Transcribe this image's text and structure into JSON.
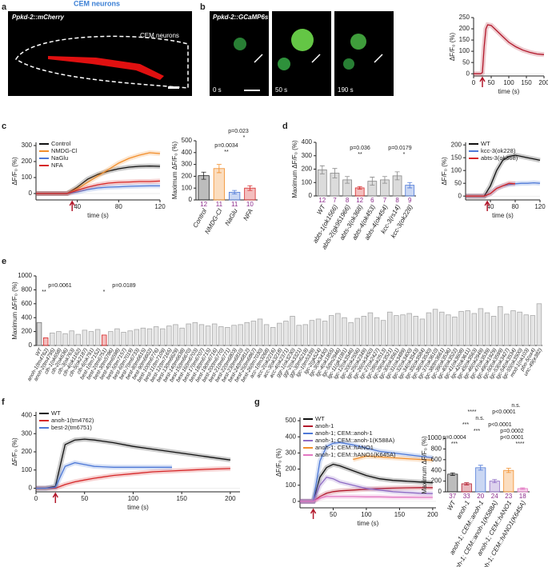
{
  "figure_header": "CEM neurons",
  "panel_letters": [
    "a",
    "b",
    "c",
    "d",
    "e",
    "f",
    "g"
  ],
  "panels": {
    "a": {
      "label": "Ppkd-2::mCherry",
      "annotation": "CEM neurons"
    },
    "b": {
      "label": "Ppkd-2::GCaMP6s",
      "frames": [
        "0 s",
        "50 s",
        "190 s"
      ]
    }
  },
  "chart_data": [
    {
      "type": "line",
      "xlabel": "time (s)",
      "ylabel": "ΔF/F₀ (%)",
      "x": [
        0,
        20,
        25,
        30,
        35,
        40,
        50,
        60,
        80,
        100,
        120,
        140,
        160,
        180,
        200
      ],
      "xlim": [
        0,
        200
      ],
      "xticks": [
        0,
        50,
        100,
        150,
        200
      ],
      "ylim": [
        -10,
        250
      ],
      "yticks": [
        0,
        50,
        100,
        150,
        200,
        250
      ],
      "stimulus_x": 25,
      "series": [
        {
          "color": "#b2182b",
          "values": [
            0,
            0,
            5,
            120,
            200,
            218,
            215,
            200,
            170,
            140,
            120,
            105,
            95,
            88,
            85
          ]
        }
      ]
    },
    {
      "type": "line",
      "xlabel": "time (s)",
      "ylabel": "ΔF/F₀ (%)",
      "x": [
        0,
        10,
        20,
        30,
        40,
        50,
        60,
        70,
        80,
        90,
        100,
        110,
        120
      ],
      "xlim": [
        0,
        120
      ],
      "xticks": [
        40,
        80,
        120
      ],
      "ylim": [
        -40,
        320
      ],
      "yticks": [
        0,
        100,
        200,
        300
      ],
      "stimulus_x": 35,
      "legend": "top-left",
      "series": [
        {
          "name": "Control",
          "color": "#111111",
          "values": [
            0,
            0,
            0,
            0,
            40,
            90,
            120,
            140,
            155,
            165,
            170,
            172,
            170
          ]
        },
        {
          "name": "NMDG-Cl",
          "color": "#f28e2b",
          "values": [
            0,
            0,
            0,
            0,
            30,
            70,
            110,
            150,
            190,
            220,
            240,
            255,
            250
          ]
        },
        {
          "name": "NaGlu",
          "color": "#4e79d7",
          "values": [
            0,
            0,
            0,
            0,
            10,
            25,
            35,
            40,
            42,
            45,
            47,
            48,
            48
          ]
        },
        {
          "name": "NFA",
          "color": "#d62728",
          "values": [
            0,
            0,
            0,
            0,
            20,
            40,
            55,
            65,
            70,
            72,
            75,
            75,
            78
          ]
        }
      ]
    },
    {
      "type": "bar",
      "ylabel": "Maximum ΔF/F₀ (%)",
      "categories": [
        "Control",
        "NMDG-Cl",
        "NaGlu",
        "NFA"
      ],
      "values": [
        205,
        265,
        65,
        100
      ],
      "errors": [
        30,
        35,
        15,
        20
      ],
      "colors": [
        "#222222",
        "#f28e2b",
        "#4e79d7",
        "#d62728"
      ],
      "n_labels": [
        "12",
        "11",
        "11",
        "10"
      ],
      "ylim": [
        0,
        500
      ],
      "yticks": [
        0,
        100,
        200,
        300,
        400,
        500
      ],
      "annotations": [
        "p=0.023",
        "*",
        "p=0.0034",
        "**"
      ]
    },
    {
      "type": "bar",
      "ylabel": "Maximum ΔF/F₀ (%)",
      "categories": [
        "WT",
        "abts-1(ok1566)",
        "abts-2(gk951966)",
        "abts-3(ok368)",
        "abts-4(ok453)",
        "abts-4(ok454)",
        "kcc-3(rs14)",
        "kcc-3(ok228)"
      ],
      "values": [
        195,
        170,
        120,
        60,
        110,
        120,
        150,
        80
      ],
      "errors": [
        30,
        35,
        25,
        10,
        30,
        25,
        30,
        20
      ],
      "colors": [
        "#888888",
        "#888888",
        "#888888",
        "#d62728",
        "#888888",
        "#888888",
        "#888888",
        "#4e79d7"
      ],
      "n_labels": [
        "12",
        "7",
        "8",
        "12",
        "6",
        "7",
        "8",
        "9"
      ],
      "ylim": [
        0,
        400
      ],
      "yticks": [
        0,
        100,
        200,
        300,
        400
      ],
      "annotations": [
        "p=0.036",
        "**",
        "p=0.0179",
        "*"
      ]
    },
    {
      "type": "line",
      "xlabel": "time (s)",
      "ylabel": "ΔF/F₀ (%)",
      "x": [
        0,
        10,
        20,
        30,
        40,
        50,
        60,
        70,
        80,
        90,
        100,
        110,
        120
      ],
      "xlim": [
        0,
        120
      ],
      "xticks": [
        40,
        80,
        120
      ],
      "ylim": [
        -15,
        210
      ],
      "yticks": [
        0,
        50,
        100,
        150,
        200
      ],
      "stimulus_x": 35,
      "legend": "top-left",
      "series": [
        {
          "name": "WT",
          "color": "#111111",
          "values": [
            0,
            0,
            0,
            0,
            40,
            100,
            140,
            155,
            160,
            155,
            150,
            145,
            140
          ]
        },
        {
          "name": "kcc-3(ok228)",
          "color": "#4e79d7",
          "values": [
            0,
            0,
            0,
            0,
            10,
            30,
            40,
            45,
            48,
            50,
            50,
            52,
            50
          ]
        },
        {
          "name": "abts-3(ok368)",
          "color": "#d62728",
          "values": [
            0,
            0,
            0,
            0,
            10,
            30,
            40,
            50,
            48,
            null,
            null,
            null,
            null
          ]
        }
      ]
    },
    {
      "type": "bar",
      "ylabel": "Maximum ΔF/F₀ (%)",
      "categories": [
        "WT",
        "anoh-1(tm4762)",
        "anoh-2(tm4795)",
        "clh-1(ok658)",
        "clh-2(ok636)",
        "clh-3(ok763)",
        "clh-4(ok1162)",
        "clh-5(ok2187)",
        "clh-6(ok791)",
        "best-1(tm7152)",
        "best-2(tm6751)",
        "best-3(tm5786)",
        "best-4(tm6598)",
        "best-5(tm7157)",
        "best-6(tm7019)",
        "best-7(tm6733)",
        "best-8(tm6615)",
        "best-9(tm6602)",
        "best-10(tm6776)",
        "best-11(tm7109)",
        "best-12(tm7165)",
        "best-13(tm6629)",
        "best-14(tm6638)",
        "best-15(tm6670)",
        "best-16(tm6703)",
        "best-17(tm6707)",
        "best-18(tm6715)",
        "best-19(tm6716)",
        "best-20(tm6770)",
        "best-21(tm6771)",
        "best-22(tm6803)",
        "best-23(tm6810)",
        "best-24(tm6812)",
        "best-25(tm6867)",
        "best-26(tm7030)",
        "acc-1(tm3268)",
        "acc-2(ok2216)",
        "acc-3(ok3218)",
        "acc-4(ok2371)",
        "ggr-1(ok3230)",
        "ggr-2(ok3321)",
        "ggr-3(tm6218)",
        "lgc-1(tm5339)",
        "lgc-2(gk524)",
        "lgc-3(ok3430)",
        "lgc-4(ok1855)",
        "lgc-5(tm2946)",
        "lgc-11(gk1081)",
        "lgc-12(ok3546)",
        "lgc-20(ok2556)",
        "lgc-25(ok2349)",
        "lgc-26(ok3450)",
        "lgc-27(ok2427)",
        "lgc-28(ok2513)",
        "lgc-29(ok3521)",
        "lgc-30(ok3561)",
        "lgc-31(ok3489)",
        "lgc-32(ok3400)",
        "lgc-34(ok3543)",
        "lgc-35(ok3584)",
        "lgc-36(ok3530)",
        "lgc-37(ok3610)",
        "lgc-38(tm3661)",
        "lgc-39(ok3536)",
        "lgc-40(ok3522)",
        "lgc-41(ok3608)",
        "lgc-42(ok3611)",
        "lgc-45(ok3563)",
        "lgc-46(ok2949)",
        "lgc-47(ok3539)",
        "lgc-49(ok1929)",
        "lgc-50(ok3599)",
        "lgc-53(ok3427)",
        "lgc-54(ok3534)",
        "lgc-55(ok3500)",
        "mod-1(ok103)",
        "pbo-5(ox4)",
        "unc-49(e382)"
      ],
      "values": [
        330,
        110,
        180,
        200,
        170,
        210,
        160,
        220,
        200,
        230,
        150,
        200,
        240,
        190,
        210,
        230,
        250,
        240,
        270,
        240,
        280,
        300,
        250,
        310,
        330,
        300,
        280,
        310,
        270,
        260,
        290,
        300,
        330,
        350,
        380,
        300,
        260,
        320,
        350,
        420,
        290,
        300,
        360,
        380,
        350,
        430,
        460,
        400,
        330,
        390,
        420,
        470,
        400,
        360,
        480,
        430,
        440,
        460,
        420,
        380,
        470,
        520,
        480,
        440,
        410,
        490,
        500,
        460,
        530,
        470,
        420,
        560,
        450,
        500,
        480,
        440,
        430,
        600
      ],
      "colors": [
        "#777777",
        "#d62728",
        "#aaaaaa",
        "#aaaaaa",
        "#aaaaaa",
        "#aaaaaa",
        "#aaaaaa",
        "#aaaaaa",
        "#aaaaaa",
        "#aaaaaa",
        "#d62728",
        "#aaaaaa",
        "#aaaaaa",
        "#aaaaaa",
        "#aaaaaa",
        "#aaaaaa",
        "#aaaaaa",
        "#aaaaaa",
        "#aaaaaa",
        "#aaaaaa",
        "#aaaaaa",
        "#aaaaaa",
        "#aaaaaa",
        "#aaaaaa",
        "#aaaaaa",
        "#aaaaaa",
        "#aaaaaa",
        "#aaaaaa",
        "#aaaaaa",
        "#aaaaaa",
        "#aaaaaa",
        "#aaaaaa",
        "#aaaaaa",
        "#aaaaaa",
        "#aaaaaa",
        "#aaaaaa",
        "#aaaaaa",
        "#aaaaaa",
        "#aaaaaa",
        "#aaaaaa",
        "#aaaaaa",
        "#aaaaaa",
        "#aaaaaa",
        "#aaaaaa",
        "#aaaaaa",
        "#aaaaaa",
        "#aaaaaa",
        "#aaaaaa",
        "#aaaaaa",
        "#aaaaaa",
        "#aaaaaa",
        "#aaaaaa",
        "#aaaaaa",
        "#aaaaaa",
        "#aaaaaa",
        "#aaaaaa",
        "#aaaaaa",
        "#aaaaaa",
        "#aaaaaa",
        "#aaaaaa",
        "#aaaaaa",
        "#aaaaaa",
        "#aaaaaa",
        "#aaaaaa",
        "#aaaaaa",
        "#aaaaaa",
        "#aaaaaa",
        "#aaaaaa",
        "#aaaaaa",
        "#aaaaaa",
        "#aaaaaa",
        "#aaaaaa",
        "#aaaaaa",
        "#aaaaaa",
        "#aaaaaa",
        "#aaaaaa",
        "#aaaaaa",
        "#aaaaaa"
      ],
      "ylim": [
        0,
        1000
      ],
      "yticks": [
        0,
        200,
        400,
        600,
        800,
        1000
      ],
      "annotations": [
        "p=0.0061",
        "**",
        "p=0.0189",
        "*"
      ]
    },
    {
      "type": "line",
      "xlabel": "time (s)",
      "ylabel": "ΔF/F₀ (%)",
      "x": [
        0,
        10,
        20,
        30,
        40,
        50,
        60,
        80,
        100,
        120,
        140,
        160,
        180,
        200
      ],
      "xlim": [
        0,
        210
      ],
      "xticks": [
        0,
        50,
        100,
        150,
        200
      ],
      "ylim": [
        -20,
        420
      ],
      "yticks": [
        0,
        100,
        200,
        300,
        400
      ],
      "stimulus_x": 20,
      "legend": "top-left",
      "series": [
        {
          "name": "WT",
          "color": "#111111",
          "values": [
            0,
            0,
            10,
            240,
            265,
            270,
            265,
            250,
            230,
            215,
            200,
            185,
            170,
            155
          ]
        },
        {
          "name": "anoh-1(tm4762)",
          "color": "#d62728",
          "values": [
            0,
            0,
            0,
            20,
            35,
            45,
            55,
            70,
            80,
            90,
            95,
            100,
            105,
            108
          ]
        },
        {
          "name": "best-2(tm6751)",
          "color": "#4e79d7",
          "values": [
            0,
            0,
            5,
            120,
            140,
            130,
            120,
            115,
            115,
            115,
            115,
            null,
            null,
            null
          ]
        }
      ]
    },
    {
      "type": "line",
      "xlabel": "time (s)",
      "ylabel": "ΔF/F₀ (%)",
      "x": [
        0,
        10,
        20,
        30,
        40,
        50,
        60,
        80,
        100,
        120,
        140,
        160,
        180,
        200
      ],
      "xlim": [
        0,
        205
      ],
      "xticks": [
        50,
        100,
        150,
        200
      ],
      "ylim": [
        -40,
        520
      ],
      "yticks": [
        0,
        100,
        200,
        300,
        400,
        500
      ],
      "stimulus_x": 20,
      "legend": "top-left",
      "series": [
        {
          "name": "WT",
          "color": "#111111",
          "values": [
            0,
            0,
            0,
            150,
            210,
            230,
            220,
            190,
            160,
            140,
            130,
            125,
            120,
            115
          ]
        },
        {
          "name": "anoh-1",
          "color": "#b2182b",
          "values": [
            0,
            0,
            0,
            30,
            50,
            60,
            65,
            70,
            75,
            80,
            82,
            84,
            85,
            85
          ]
        },
        {
          "name": "anoh-1; CEM::anoh-1",
          "color": "#4e79d7",
          "values": [
            0,
            0,
            0,
            250,
            340,
            360,
            365,
            350,
            330,
            310,
            300,
            290,
            280,
            270
          ]
        },
        {
          "name": "anoh-1; CEM::anoh-1(K588A)",
          "color": "#8e6bc4",
          "values": [
            0,
            0,
            0,
            100,
            150,
            140,
            120,
            100,
            80,
            70,
            60,
            55,
            50,
            48
          ]
        },
        {
          "name": "anoh-1; CEM::hANO1",
          "color": "#f28e2b",
          "values": [
            null,
            null,
            null,
            null,
            null,
            null,
            null,
            260,
            280,
            275,
            270,
            265,
            260,
            255
          ]
        },
        {
          "name": "anoh-1; CEM::hANO1(K645A)",
          "color": "#e377c2",
          "values": [
            0,
            0,
            0,
            20,
            30,
            30,
            30,
            30,
            28,
            28,
            26,
            26,
            25,
            25
          ]
        }
      ]
    },
    {
      "type": "bar",
      "ylabel": "Maximum ΔF/F₀ (%)",
      "categories": [
        "WT",
        "anoh-1",
        "anoh-1; CEM::anoh-1",
        "anoh-1; CEM::anoh-1(K588A)",
        "anoh-1; CEM::hANO1",
        "anoh-1; CEM::hANO1(K645A)"
      ],
      "values": [
        330,
        150,
        450,
        200,
        400,
        60
      ],
      "errors": [
        25,
        20,
        45,
        30,
        40,
        15
      ],
      "colors": [
        "#222222",
        "#b2182b",
        "#4e79d7",
        "#8e6bc4",
        "#f28e2b",
        "#e377c2"
      ],
      "n_labels": [
        "37",
        "33",
        "20",
        "24",
        "23",
        "18"
      ],
      "ylim": [
        0,
        1000
      ],
      "yticks": [
        0,
        200,
        400,
        600,
        800,
        1000
      ],
      "annotations": [
        "n.s.",
        "****",
        "p<0.0001",
        "n.s.",
        "***",
        "p<0.0001",
        "***",
        "p=0.0002",
        "p=0.0004",
        "***",
        "p<0.0001",
        "****"
      ]
    }
  ]
}
